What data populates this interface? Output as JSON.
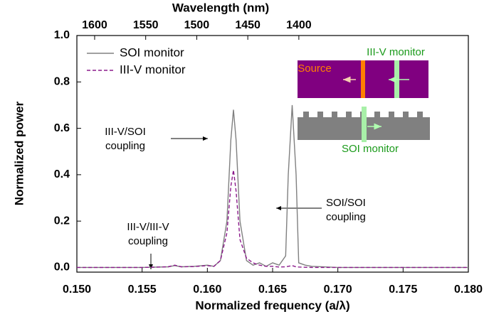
{
  "chart_data": {
    "type": "line",
    "xlabel": "Normalized frequency (a/λ)",
    "ylabel": "Normalized power",
    "x2label": "Wavelength (nm)",
    "x": [
      0.15,
      0.155,
      0.157,
      0.1575,
      0.158,
      0.159,
      0.16,
      0.1605,
      0.161,
      0.1615,
      0.1618,
      0.162,
      0.1622,
      0.1625,
      0.163,
      0.1635,
      0.164,
      0.1645,
      0.165,
      0.1655,
      0.166,
      0.1662,
      0.1665,
      0.1668,
      0.167,
      0.1675,
      0.168,
      0.17,
      0.18
    ],
    "series": [
      {
        "name": "SOI monitor",
        "color": "#808080",
        "dash": false,
        "values": [
          0,
          0,
          0.003,
          0.008,
          0.003,
          0.005,
          0.01,
          0.005,
          0.03,
          0.2,
          0.55,
          0.68,
          0.55,
          0.2,
          0.03,
          0.01,
          0.02,
          0.005,
          0.02,
          0.01,
          0.05,
          0.4,
          0.7,
          0.4,
          0.02,
          0.01,
          0.005,
          0,
          0
        ]
      },
      {
        "name": "III-V monitor",
        "color": "#8b1a8b",
        "dash": true,
        "values": [
          0,
          0,
          0.003,
          0.01,
          0.003,
          0.004,
          0.008,
          0.005,
          0.03,
          0.15,
          0.35,
          0.42,
          0.33,
          0.12,
          0.04,
          0.02,
          0.01,
          0.005,
          0.005,
          0.002,
          0.003,
          0.005,
          0.008,
          0.003,
          0.002,
          0.001,
          0,
          0,
          0
        ]
      }
    ],
    "xlim": [
      0.15,
      0.18
    ],
    "xticks": [
      {
        "value": 0.15,
        "label": "0.150"
      },
      {
        "value": 0.155,
        "label": "0.155"
      },
      {
        "value": 0.16,
        "label": "0.160"
      },
      {
        "value": 0.165,
        "label": "0.165"
      },
      {
        "value": 0.17,
        "label": "0.170"
      },
      {
        "value": 0.175,
        "label": "0.175"
      },
      {
        "value": 0.18,
        "label": "0.180"
      }
    ],
    "ylim": [
      -0.02,
      1.0
    ],
    "yticks": [
      {
        "value": 0,
        "label": "0.0"
      },
      {
        "value": 0.2,
        "label": "0.2"
      },
      {
        "value": 0.4,
        "label": "0.4"
      },
      {
        "value": 0.6,
        "label": "0.6"
      },
      {
        "value": 0.8,
        "label": "0.8"
      },
      {
        "value": 1.0,
        "label": "1.0"
      }
    ],
    "x2lim": [
      1617.4,
      1234
    ],
    "x2ticks": [
      1600,
      1550,
      1500,
      1450,
      1400
    ],
    "legend": "upper left",
    "annotations": [
      {
        "lines": [
          "III-V/SOI",
          "coupling"
        ]
      },
      {
        "lines": [
          "SOI/SOI",
          "coupling"
        ]
      },
      {
        "lines": [
          "III-V/III-V",
          "coupling"
        ]
      }
    ],
    "inset_labels": {
      "source": "Source",
      "iii_v_monitor": "III-V monitor",
      "soi_monitor": "SOI monitor"
    }
  }
}
